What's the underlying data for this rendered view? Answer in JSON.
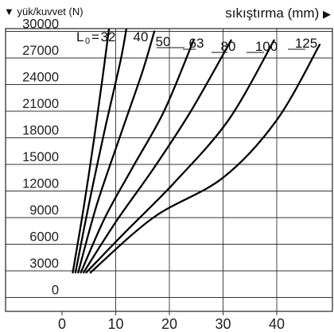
{
  "chart_data": {
    "type": "line",
    "y_header": "yük/kuvvet (N)",
    "x_header": "sıkıştırma (mm)",
    "y_arrow": "▼",
    "x_arrow": "▶",
    "legend_prefix": "L",
    "legend_subscript": "0",
    "legend_equals": "=",
    "x_ticks": [
      "0",
      "10",
      "20",
      "30",
      "40"
    ],
    "y_ticks": [
      "0",
      "3000",
      "6000",
      "9000",
      "12000",
      "15000",
      "18000",
      "21000",
      "24000",
      "27000",
      "30000"
    ],
    "xlim": [
      -3,
      48
    ],
    "ylim": [
      -2000,
      31000
    ],
    "grid": true,
    "series": [
      {
        "name": "32",
        "points": [
          [
            2,
            2800
          ],
          [
            4,
            10000
          ],
          [
            6,
            18000
          ],
          [
            7.6,
            25000
          ],
          [
            9,
            31500
          ]
        ]
      },
      {
        "name": "40",
        "points": [
          [
            2.5,
            2800
          ],
          [
            5,
            10500
          ],
          [
            8,
            19000
          ],
          [
            11,
            27000
          ],
          [
            12.3,
            31500
          ]
        ]
      },
      {
        "name": "50",
        "points": [
          [
            3,
            2800
          ],
          [
            6.5,
            10500
          ],
          [
            11,
            18500
          ],
          [
            15,
            25500
          ],
          [
            17.2,
            30000
          ]
        ]
      },
      {
        "name": "63",
        "points": [
          [
            3.5,
            2800
          ],
          [
            8,
            9000
          ],
          [
            13,
            14500
          ],
          [
            19,
            21000
          ],
          [
            24.5,
            29000
          ]
        ]
      },
      {
        "name": "80",
        "points": [
          [
            4,
            2800
          ],
          [
            10,
            8500
          ],
          [
            17,
            14500
          ],
          [
            24,
            21000
          ],
          [
            31.5,
            29000
          ]
        ]
      },
      {
        "name": "100",
        "points": [
          [
            4.5,
            2800
          ],
          [
            12,
            7500
          ],
          [
            21,
            13000
          ],
          [
            31,
            20000
          ],
          [
            39.5,
            29000
          ]
        ]
      },
      {
        "name": "125",
        "points": [
          [
            5.3,
            2800
          ],
          [
            17,
            9000
          ],
          [
            30,
            13500
          ],
          [
            40,
            20000
          ],
          [
            48,
            28500
          ]
        ]
      }
    ]
  }
}
